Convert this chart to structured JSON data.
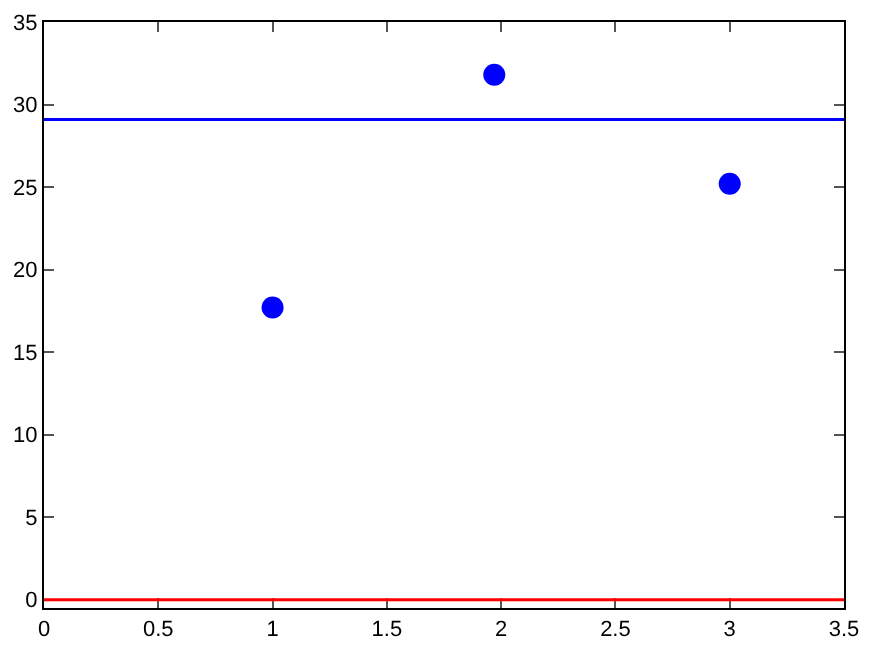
{
  "chart_data": {
    "type": "scatter",
    "x": [
      1,
      1.97,
      3
    ],
    "values": [
      17.7,
      31.8,
      25.2
    ],
    "color": "#0000ff",
    "marker": "circle",
    "xlim": [
      0,
      3.5
    ],
    "xticks": [
      0,
      0.5,
      1,
      1.5,
      2,
      2.5,
      3,
      3.5
    ],
    "ylim": [
      -0.5,
      35
    ],
    "yticks": [
      0,
      5,
      10,
      15,
      20,
      25,
      30,
      35
    ],
    "ref_lines": [
      {
        "axis": "y",
        "value": 29.1,
        "color": "#0000ff",
        "line_style": "solid"
      },
      {
        "axis": "y",
        "value": 0,
        "color": "#ff0000",
        "line_style": "solid"
      }
    ]
  }
}
